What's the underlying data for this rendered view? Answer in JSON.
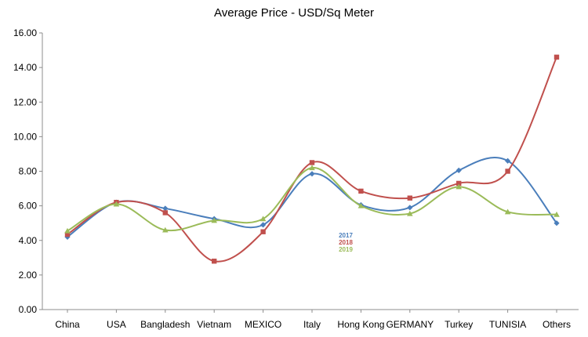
{
  "chart_data": {
    "type": "line",
    "title": "Average Price - USD/Sq Meter",
    "xlabel": "",
    "ylabel": "",
    "categories": [
      "China",
      "USA",
      "Bangladesh",
      "Vietnam",
      "MEXICO",
      "Italy",
      "Hong Kong",
      "GERMANY",
      "Turkey",
      "TUNISIA",
      "Others"
    ],
    "ylim": [
      0,
      16
    ],
    "yticks": [
      "0.00",
      "2.00",
      "4.00",
      "6.00",
      "8.00",
      "10.00",
      "12.00",
      "14.00",
      "16.00"
    ],
    "grid": false,
    "legend_position": "center",
    "smooth": true,
    "series": [
      {
        "name": "2017",
        "color": "#4a7ebb",
        "marker": "diamond",
        "values": [
          4.2,
          6.2,
          5.85,
          5.25,
          4.9,
          7.85,
          6.05,
          5.9,
          8.05,
          8.6,
          5.0
        ]
      },
      {
        "name": "2018",
        "color": "#c0504d",
        "marker": "square",
        "values": [
          4.35,
          6.2,
          5.6,
          2.8,
          4.5,
          8.5,
          6.85,
          6.45,
          7.3,
          8.0,
          14.6
        ]
      },
      {
        "name": "2019",
        "color": "#9bbb59",
        "marker": "triangle",
        "values": [
          4.55,
          6.1,
          4.6,
          5.15,
          5.25,
          8.2,
          6.0,
          5.55,
          7.1,
          5.65,
          5.5
        ]
      }
    ]
  }
}
